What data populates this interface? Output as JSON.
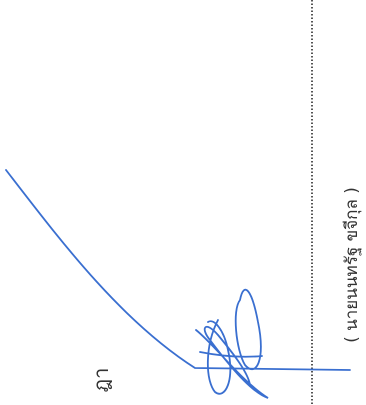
{
  "signature": {
    "name": "( นายนนทรัฐ  ขจีกุล )"
  },
  "fragment": "ฎา"
}
